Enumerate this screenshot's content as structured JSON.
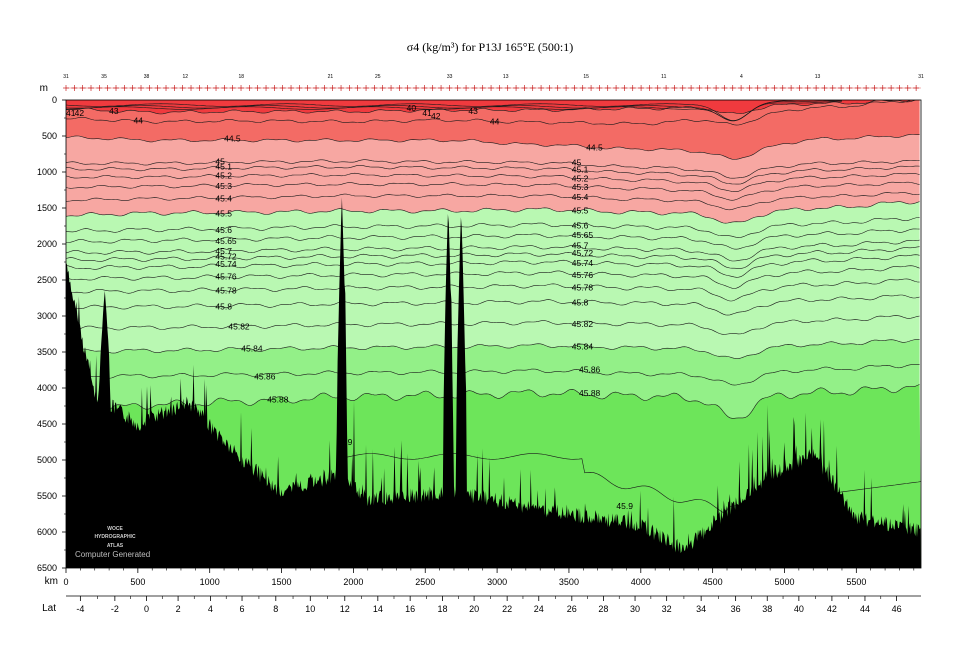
{
  "chart_data": {
    "type": "heatmap",
    "title": "σ4 (kg/m³) for P13J 165°E (500:1)",
    "x_unit": "km",
    "y_unit": "m",
    "lat_label": "Lat",
    "xlim": [
      0,
      5950
    ],
    "ylim": [
      0,
      6500
    ],
    "y_ticks": [
      0,
      500,
      1000,
      1500,
      2000,
      2500,
      3000,
      3500,
      4000,
      4500,
      5000,
      5500,
      6000,
      6500
    ],
    "x_ticks": [
      0,
      500,
      1000,
      1500,
      2000,
      2500,
      3000,
      3500,
      4000,
      4500,
      5000,
      5500
    ],
    "lat_ticks": [
      {
        "lat": "-4",
        "km": 100
      },
      {
        "lat": "-2",
        "km": 340
      },
      {
        "lat": "0",
        "km": 560
      },
      {
        "lat": "2",
        "km": 780
      },
      {
        "lat": "4",
        "km": 1005
      },
      {
        "lat": "6",
        "km": 1225
      },
      {
        "lat": "8",
        "km": 1460
      },
      {
        "lat": "10",
        "km": 1700
      },
      {
        "lat": "12",
        "km": 1940
      },
      {
        "lat": "14",
        "km": 2170
      },
      {
        "lat": "16",
        "km": 2395
      },
      {
        "lat": "18",
        "km": 2620
      },
      {
        "lat": "20",
        "km": 2840
      },
      {
        "lat": "22",
        "km": 3070
      },
      {
        "lat": "24",
        "km": 3290
      },
      {
        "lat": "26",
        "km": 3520
      },
      {
        "lat": "28",
        "km": 3740
      },
      {
        "lat": "30",
        "km": 3960
      },
      {
        "lat": "32",
        "km": 4180
      },
      {
        "lat": "34",
        "km": 4420
      },
      {
        "lat": "36",
        "km": 4660
      },
      {
        "lat": "38",
        "km": 4880
      },
      {
        "lat": "40",
        "km": 5100
      },
      {
        "lat": "42",
        "km": 5330
      },
      {
        "lat": "44",
        "km": 5560
      },
      {
        "lat": "46",
        "km": 5780
      }
    ],
    "station_labels": [
      {
        "label": "31",
        "km": 0
      },
      {
        "label": "35",
        "km": 265
      },
      {
        "label": "38",
        "km": 560
      },
      {
        "label": "12",
        "km": 830
      },
      {
        "label": "18",
        "km": 1220
      },
      {
        "label": "21",
        "km": 1840
      },
      {
        "label": "25",
        "km": 2170
      },
      {
        "label": "33",
        "km": 2670
      },
      {
        "label": "13",
        "km": 3060
      },
      {
        "label": "15",
        "km": 3620
      },
      {
        "label": "11",
        "km": 4160
      },
      {
        "label": "4",
        "km": 4700
      },
      {
        "label": "13",
        "km": 5230
      },
      {
        "label": "31",
        "km": 5950
      }
    ],
    "color_bands": [
      {
        "upper": 0,
        "lower_contour": "43",
        "color": "#f03a3e"
      },
      {
        "upper_contour": "43",
        "lower_contour": "44.5",
        "color": "#f36b65"
      },
      {
        "upper_contour": "44.5",
        "lower_contour": "45.5",
        "color": "#f7a7a2"
      },
      {
        "upper_contour": "45.5",
        "lower_contour": "45.84",
        "color": "#b9f8b2"
      },
      {
        "upper_contour": "45.84",
        "lower_contour": "45.88",
        "color": "#93f088"
      },
      {
        "upper_contour": "45.88",
        "lower": "bottom",
        "color": "#6de55a"
      }
    ],
    "isopycnals": [
      {
        "label": "40",
        "kind": "shallow"
      },
      {
        "label": "41",
        "kind": "shallow"
      },
      {
        "label": "42",
        "kind": "shallow"
      },
      {
        "label": "43",
        "depths": [
          130,
          170,
          160,
          160,
          140,
          140,
          120,
          100,
          50,
          0
        ]
      },
      {
        "label": "44",
        "depths": [
          260,
          300,
          290,
          300,
          280,
          310,
          330,
          250,
          100,
          0
        ]
      },
      {
        "label": "44.5",
        "depths": [
          520,
          560,
          560,
          560,
          560,
          620,
          680,
          720,
          540,
          490
        ]
      },
      {
        "label": "45",
        "depths": [
          880,
          880,
          860,
          850,
          860,
          870,
          930,
          980,
          880,
          850
        ]
      },
      {
        "label": "45.1",
        "depths": [
          960,
          960,
          940,
          930,
          940,
          950,
          1010,
          1060,
          970,
          930
        ]
      },
      {
        "label": "45.2",
        "depths": [
          1070,
          1070,
          1050,
          1040,
          1050,
          1060,
          1110,
          1160,
          1070,
          1030
        ]
      },
      {
        "label": "45.3",
        "depths": [
          1210,
          1200,
          1180,
          1170,
          1170,
          1180,
          1230,
          1280,
          1190,
          1150
        ]
      },
      {
        "label": "45.4",
        "depths": [
          1390,
          1370,
          1350,
          1330,
          1330,
          1330,
          1380,
          1420,
          1340,
          1290
        ]
      },
      {
        "label": "45.5",
        "depths": [
          1600,
          1570,
          1560,
          1540,
          1540,
          1520,
          1560,
          1590,
          1500,
          1410
        ]
      },
      {
        "label": "45.6",
        "depths": [
          1820,
          1800,
          1780,
          1760,
          1750,
          1730,
          1760,
          1790,
          1710,
          1640
        ]
      },
      {
        "label": "45.65",
        "depths": [
          1970,
          1950,
          1930,
          1910,
          1900,
          1880,
          1910,
          1940,
          1860,
          1800
        ]
      },
      {
        "label": "45.7",
        "depths": [
          2120,
          2110,
          2090,
          2070,
          2060,
          2040,
          2070,
          2100,
          2020,
          1960
        ]
      },
      {
        "label": "45.72",
        "depths": [
          2220,
          2210,
          2190,
          2170,
          2160,
          2140,
          2170,
          2200,
          2120,
          2060
        ]
      },
      {
        "label": "45.74",
        "depths": [
          2330,
          2320,
          2300,
          2280,
          2270,
          2250,
          2280,
          2310,
          2230,
          2170
        ]
      },
      {
        "label": "45.76",
        "depths": [
          2480,
          2470,
          2450,
          2430,
          2420,
          2400,
          2430,
          2460,
          2380,
          2320
        ]
      },
      {
        "label": "45.78",
        "depths": [
          2660,
          2650,
          2630,
          2610,
          2600,
          2580,
          2610,
          2640,
          2560,
          2500
        ]
      },
      {
        "label": "45.8",
        "depths": [
          2880,
          2870,
          2850,
          2830,
          2820,
          2800,
          2820,
          2850,
          2770,
          2720
        ]
      },
      {
        "label": "45.82",
        "depths": [
          3170,
          3160,
          3140,
          3120,
          3110,
          3090,
          3110,
          3140,
          3060,
          3000
        ]
      },
      {
        "label": "45.84",
        "depths": [
          3490,
          3480,
          3460,
          3440,
          3430,
          3410,
          3440,
          3470,
          3390,
          3330
        ]
      },
      {
        "label": "45.86",
        "depths": [
          3840,
          3830,
          3810,
          3790,
          3780,
          3760,
          3800,
          3830,
          3740,
          3680
        ]
      },
      {
        "label": "45.88",
        "depths": [
          4330,
          4230,
          4180,
          4120,
          4100,
          4070,
          4110,
          4160,
          4060,
          3990
        ]
      },
      {
        "label": "45.9",
        "kind": "deep"
      }
    ],
    "contour_x_km": [
      0,
      660,
      1320,
      1980,
      2640,
      3300,
      3960,
      4620,
      5280,
      5950
    ],
    "bottom_profile": {
      "x_km": [
        0,
        200,
        500,
        850,
        1200,
        1500,
        1900,
        2100,
        2700,
        3100,
        3500,
        4000,
        4300,
        4600,
        4900,
        5200,
        5500,
        5950
      ],
      "depth_m": [
        2300,
        4100,
        4500,
        4200,
        4950,
        5450,
        5200,
        5550,
        5450,
        5600,
        5750,
        5900,
        6250,
        5700,
        5200,
        4900,
        5800,
        6000
      ]
    },
    "seamounts": [
      {
        "x_km": 270,
        "top_m": 2650
      },
      {
        "x_km": 1920,
        "top_m": 1350
      },
      {
        "x_km": 2660,
        "top_m": 1450
      },
      {
        "x_km": 2750,
        "top_m": 1500
      }
    ],
    "grid": false,
    "legend": "none"
  },
  "watermark": {
    "line1": "WOCE",
    "line2": "HYDROGRAPHIC",
    "line3": "ATLAS",
    "computer_generated": "Computer Generated"
  }
}
